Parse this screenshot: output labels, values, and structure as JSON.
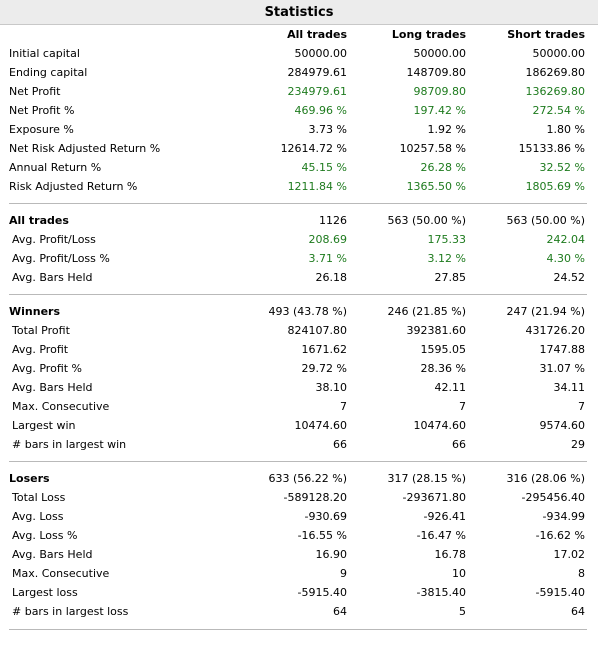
{
  "title": "Statistics",
  "columns": [
    "All trades",
    "Long trades",
    "Short trades"
  ],
  "green_color": "#1e7b1e",
  "sections": [
    {
      "rows": [
        {
          "label": "Initial capital",
          "values": [
            "50000.00",
            "50000.00",
            "50000.00"
          ],
          "green": false
        },
        {
          "label": "Ending capital",
          "values": [
            "284979.61",
            "148709.80",
            "186269.80"
          ],
          "green": false
        },
        {
          "label": "Net Profit",
          "values": [
            "234979.61",
            "98709.80",
            "136269.80"
          ],
          "green": true
        },
        {
          "label": "Net Profit %",
          "values": [
            "469.96 %",
            "197.42 %",
            "272.54 %"
          ],
          "green": true
        },
        {
          "label": "Exposure %",
          "values": [
            "3.73 %",
            "1.92 %",
            "1.80 %"
          ],
          "green": false
        },
        {
          "label": "Net Risk Adjusted Return %",
          "values": [
            "12614.72 %",
            "10257.58 %",
            "15133.86 %"
          ],
          "green": false
        },
        {
          "label": "Annual Return %",
          "values": [
            "45.15 %",
            "26.28 %",
            "32.52 %"
          ],
          "green": true
        },
        {
          "label": "Risk Adjusted Return %",
          "values": [
            "1211.84 %",
            "1365.50 %",
            "1805.69 %"
          ],
          "green": true
        }
      ]
    },
    {
      "header": {
        "label": "All trades",
        "values": [
          "1126",
          "563 (50.00 %)",
          "563 (50.00 %)"
        ]
      },
      "rows": [
        {
          "label": "Avg. Profit/Loss",
          "values": [
            "208.69",
            "175.33",
            "242.04"
          ],
          "green": true
        },
        {
          "label": "Avg. Profit/Loss %",
          "values": [
            "3.71 %",
            "3.12 %",
            "4.30 %"
          ],
          "green": true
        },
        {
          "label": "Avg. Bars Held",
          "values": [
            "26.18",
            "27.85",
            "24.52"
          ],
          "green": false
        }
      ]
    },
    {
      "header": {
        "label": "Winners",
        "values": [
          "493 (43.78 %)",
          "246 (21.85 %)",
          "247 (21.94 %)"
        ]
      },
      "rows": [
        {
          "label": "Total Profit",
          "values": [
            "824107.80",
            "392381.60",
            "431726.20"
          ],
          "green": false
        },
        {
          "label": "Avg. Profit",
          "values": [
            "1671.62",
            "1595.05",
            "1747.88"
          ],
          "green": false
        },
        {
          "label": "Avg. Profit %",
          "values": [
            "29.72 %",
            "28.36 %",
            "31.07 %"
          ],
          "green": false
        },
        {
          "label": "Avg. Bars Held",
          "values": [
            "38.10",
            "42.11",
            "34.11"
          ],
          "green": false
        },
        {
          "label": "Max. Consecutive",
          "values": [
            "7",
            "7",
            "7"
          ],
          "green": false
        },
        {
          "label": "Largest win",
          "values": [
            "10474.60",
            "10474.60",
            "9574.60"
          ],
          "green": false
        },
        {
          "label": "# bars in largest win",
          "values": [
            "66",
            "66",
            "29"
          ],
          "green": false
        }
      ]
    },
    {
      "header": {
        "label": "Losers",
        "values": [
          "633 (56.22 %)",
          "317 (28.15 %)",
          "316 (28.06 %)"
        ]
      },
      "rows": [
        {
          "label": "Total Loss",
          "values": [
            "-589128.20",
            "-293671.80",
            "-295456.40"
          ],
          "green": false
        },
        {
          "label": "Avg. Loss",
          "values": [
            "-930.69",
            "-926.41",
            "-934.99"
          ],
          "green": false
        },
        {
          "label": "Avg. Loss %",
          "values": [
            "-16.55 %",
            "-16.47 %",
            "-16.62 %"
          ],
          "green": false
        },
        {
          "label": "Avg. Bars Held",
          "values": [
            "16.90",
            "16.78",
            "17.02"
          ],
          "green": false
        },
        {
          "label": "Max. Consecutive",
          "values": [
            "9",
            "10",
            "8"
          ],
          "green": false
        },
        {
          "label": "Largest loss",
          "values": [
            "-5915.40",
            "-3815.40",
            "-5915.40"
          ],
          "green": false
        },
        {
          "label": "# bars in largest loss",
          "values": [
            "64",
            "5",
            "64"
          ],
          "green": false
        }
      ]
    }
  ]
}
